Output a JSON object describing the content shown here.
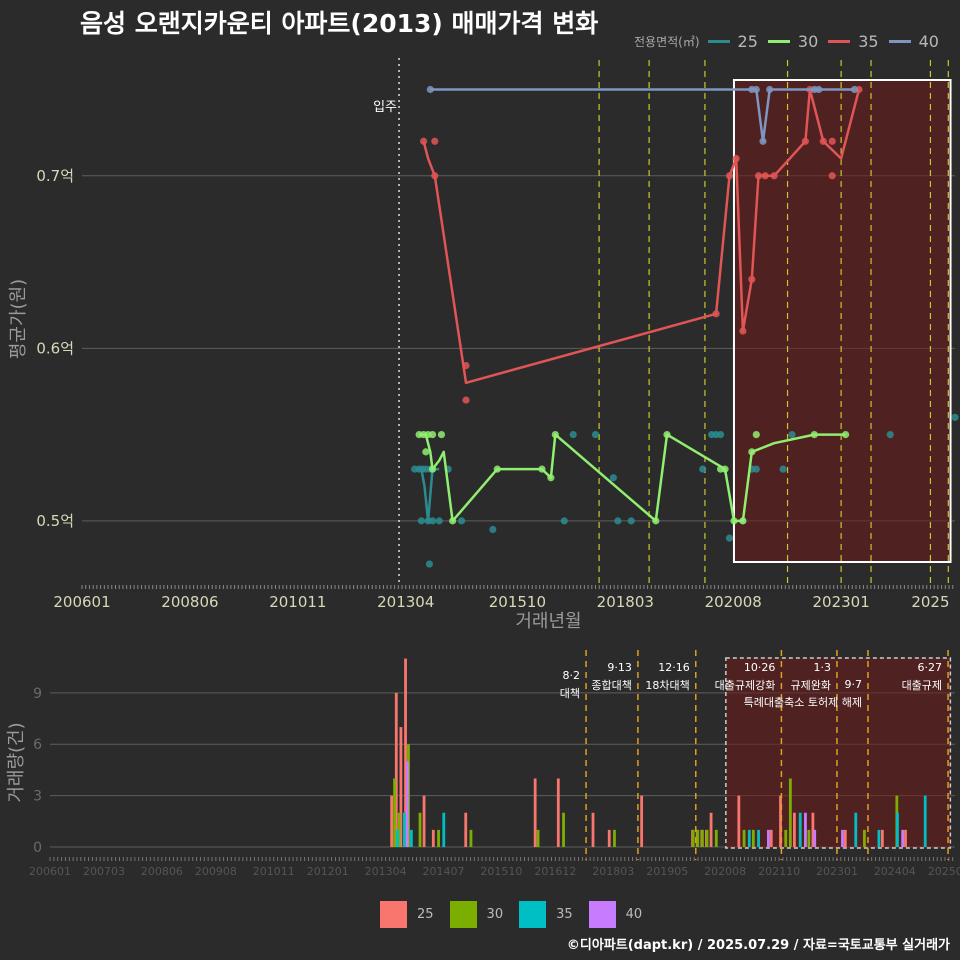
{
  "title": "음성 오랜지카운티 아파트(2013) 매매가격 변화",
  "legend": {
    "title": "전용면적(㎡)",
    "items": [
      {
        "label": "25",
        "line_color": "#2a8c8f",
        "bar_color": "#f8766d"
      },
      {
        "label": "30",
        "line_color": "#90ee70",
        "bar_color": "#7cae00"
      },
      {
        "label": "35",
        "line_color": "#e05555",
        "bar_color": "#00bfc4"
      },
      {
        "label": "40",
        "line_color": "#7f96c0",
        "bar_color": "#c77cff"
      }
    ]
  },
  "footer": "©디아파트(dapt.kr) / 2025.07.29 / 자료=국토교통부 실거래가",
  "chart_data": [
    {
      "type": "line",
      "title": "음성 오랜지카운티 아파트(2013) 매매가격 변화",
      "xlabel": "거래년월",
      "ylabel": "평균가(원)",
      "x_ticks": [
        "200601",
        "200806",
        "201011",
        "201304",
        "201510",
        "201803",
        "202008",
        "202301",
        "2025"
      ],
      "y_ticks": [
        {
          "v": 0.5,
          "label": "0.5억"
        },
        {
          "v": 0.6,
          "label": "0.6억"
        },
        {
          "v": 0.7,
          "label": "0.7억"
        }
      ],
      "xlim": [
        2006.0,
        2025.55
      ],
      "ylim": [
        0.464,
        0.77
      ],
      "grid": true,
      "occupancy": {
        "label": "입주",
        "x": 2013.1
      },
      "policy_lines": [
        2017.58,
        2018.7,
        2019.95,
        2021.8,
        2023.0,
        2023.67,
        2025.0,
        2025.4
      ],
      "highlight_range": [
        2020.6,
        2025.45
      ],
      "series": [
        {
          "name": "25",
          "color": "#2a8c8f",
          "line": [
            [
              2013.5,
              0.53
            ],
            [
              2013.6,
              0.53
            ],
            [
              2013.67,
              0.52
            ],
            [
              2013.75,
              0.5
            ],
            [
              2013.85,
              0.53
            ],
            [
              2014.0,
              0.53
            ]
          ],
          "points": [
            [
              2013.45,
              0.53
            ],
            [
              2013.55,
              0.53
            ],
            [
              2013.62,
              0.53
            ],
            [
              2013.7,
              0.53
            ],
            [
              2013.8,
              0.53
            ],
            [
              2013.85,
              0.53
            ],
            [
              2013.6,
              0.5
            ],
            [
              2013.75,
              0.5
            ],
            [
              2013.85,
              0.5
            ],
            [
              2013.78,
              0.475
            ],
            [
              2014.2,
              0.53
            ],
            [
              2014.0,
              0.5
            ],
            [
              2014.5,
              0.5
            ],
            [
              2015.2,
              0.495
            ],
            [
              2016.8,
              0.5
            ],
            [
              2017.0,
              0.55
            ],
            [
              2017.5,
              0.55
            ],
            [
              2017.9,
              0.525
            ],
            [
              2018.0,
              0.5
            ],
            [
              2018.3,
              0.5
            ],
            [
              2019.9,
              0.53
            ],
            [
              2020.1,
              0.55
            ],
            [
              2020.2,
              0.55
            ],
            [
              2020.3,
              0.55
            ],
            [
              2020.5,
              0.49
            ],
            [
              2020.8,
              0.5
            ],
            [
              2021.0,
              0.53
            ],
            [
              2021.1,
              0.53
            ],
            [
              2021.7,
              0.53
            ],
            [
              2021.9,
              0.55
            ],
            [
              2024.1,
              0.55
            ],
            [
              2025.55,
              0.56
            ]
          ]
        },
        {
          "name": "30",
          "color": "#90ee70",
          "line": [
            [
              2013.55,
              0.55
            ],
            [
              2013.7,
              0.55
            ],
            [
              2013.8,
              0.54
            ],
            [
              2013.85,
              0.53
            ],
            [
              2014.0,
              0.535
            ],
            [
              2014.1,
              0.54
            ],
            [
              2014.3,
              0.5
            ],
            [
              2015.3,
              0.53
            ],
            [
              2016.3,
              0.53
            ],
            [
              2016.5,
              0.525
            ],
            [
              2016.6,
              0.55
            ],
            [
              2018.85,
              0.5
            ],
            [
              2019.1,
              0.55
            ],
            [
              2020.4,
              0.53
            ],
            [
              2020.6,
              0.5
            ],
            [
              2020.8,
              0.5
            ],
            [
              2021.0,
              0.54
            ],
            [
              2021.5,
              0.545
            ],
            [
              2022.4,
              0.55
            ],
            [
              2023.1,
              0.55
            ]
          ],
          "points": [
            [
              2013.55,
              0.55
            ],
            [
              2013.65,
              0.55
            ],
            [
              2013.75,
              0.55
            ],
            [
              2013.85,
              0.55
            ],
            [
              2014.05,
              0.55
            ],
            [
              2013.7,
              0.54
            ],
            [
              2013.85,
              0.53
            ],
            [
              2014.3,
              0.5
            ],
            [
              2015.3,
              0.53
            ],
            [
              2016.3,
              0.53
            ],
            [
              2016.5,
              0.525
            ],
            [
              2016.6,
              0.55
            ],
            [
              2018.85,
              0.5
            ],
            [
              2019.1,
              0.55
            ],
            [
              2020.3,
              0.53
            ],
            [
              2020.4,
              0.53
            ],
            [
              2020.6,
              0.5
            ],
            [
              2020.8,
              0.5
            ],
            [
              2021.0,
              0.54
            ],
            [
              2021.1,
              0.55
            ],
            [
              2022.4,
              0.55
            ],
            [
              2023.1,
              0.55
            ]
          ]
        },
        {
          "name": "35",
          "color": "#e05555",
          "line": [
            [
              2013.65,
              0.72
            ],
            [
              2013.75,
              0.71
            ],
            [
              2013.9,
              0.7
            ],
            [
              2014.6,
              0.58
            ],
            [
              2020.2,
              0.62
            ],
            [
              2020.5,
              0.7
            ],
            [
              2020.65,
              0.71
            ],
            [
              2020.8,
              0.61
            ],
            [
              2021.0,
              0.64
            ],
            [
              2021.15,
              0.7
            ],
            [
              2021.3,
              0.7
            ],
            [
              2021.5,
              0.7
            ],
            [
              2022.2,
              0.72
            ],
            [
              2022.3,
              0.75
            ],
            [
              2022.6,
              0.72
            ],
            [
              2023.0,
              0.71
            ],
            [
              2023.4,
              0.75
            ]
          ],
          "points": [
            [
              2013.65,
              0.72
            ],
            [
              2013.9,
              0.72
            ],
            [
              2013.9,
              0.7
            ],
            [
              2014.6,
              0.59
            ],
            [
              2014.6,
              0.57
            ],
            [
              2020.2,
              0.62
            ],
            [
              2020.5,
              0.7
            ],
            [
              2020.65,
              0.71
            ],
            [
              2020.8,
              0.61
            ],
            [
              2021.0,
              0.64
            ],
            [
              2021.15,
              0.7
            ],
            [
              2021.3,
              0.7
            ],
            [
              2021.5,
              0.7
            ],
            [
              2022.2,
              0.72
            ],
            [
              2022.3,
              0.75
            ],
            [
              2022.6,
              0.72
            ],
            [
              2022.8,
              0.72
            ],
            [
              2022.8,
              0.7
            ],
            [
              2023.4,
              0.75
            ]
          ]
        },
        {
          "name": "40",
          "color": "#7f96c0",
          "line": [
            [
              2013.8,
              0.75
            ],
            [
              2021.1,
              0.75
            ],
            [
              2021.25,
              0.72
            ],
            [
              2021.4,
              0.75
            ],
            [
              2023.3,
              0.75
            ]
          ],
          "points": [
            [
              2013.8,
              0.75
            ],
            [
              2021.0,
              0.75
            ],
            [
              2021.1,
              0.75
            ],
            [
              2021.25,
              0.72
            ],
            [
              2021.4,
              0.75
            ],
            [
              2022.4,
              0.75
            ],
            [
              2022.5,
              0.75
            ],
            [
              2023.3,
              0.75
            ]
          ]
        }
      ]
    },
    {
      "type": "bar",
      "ylabel": "거래량(건)",
      "x_ticks": [
        "200601",
        "200703",
        "200806",
        "200908",
        "201011",
        "201201",
        "201304",
        "201407",
        "201510",
        "201612",
        "201803",
        "201905",
        "202008",
        "202110",
        "202301",
        "202404",
        "202506"
      ],
      "y_ticks": [
        0,
        3,
        6,
        9
      ],
      "xlim": [
        2006.0,
        2025.55
      ],
      "ylim": [
        0,
        11.5
      ],
      "highlight_range": [
        2020.6,
        2025.45
      ],
      "events": [
        {
          "x": 2017.58,
          "label": "8·2 대책"
        },
        {
          "x": 2018.7,
          "label": "9·13 종합대책"
        },
        {
          "x": 2019.95,
          "label": "12·16 18차대책"
        },
        {
          "x": 2021.8,
          "label": "10·26 대출규제강화"
        },
        {
          "x": 2023.0,
          "label": "1·3 규제완화"
        },
        {
          "x": 2023.67,
          "label": "9·7 특례대출축소 토허제 해제"
        },
        {
          "x": 2025.4,
          "label": "6·27 대출규제"
        }
      ],
      "series": [
        {
          "name": "25",
          "color": "#f8766d",
          "values": [
            [
              2013.4,
              3
            ],
            [
              2013.5,
              9
            ],
            [
              2013.6,
              7
            ],
            [
              2013.7,
              11
            ],
            [
              2014.1,
              3
            ],
            [
              2014.3,
              1
            ],
            [
              2015.0,
              2
            ],
            [
              2016.5,
              4
            ],
            [
              2017.0,
              4
            ],
            [
              2017.75,
              2
            ],
            [
              2018.1,
              1
            ],
            [
              2018.8,
              3
            ],
            [
              2019.9,
              1
            ],
            [
              2020.0,
              1
            ],
            [
              2020.1,
              1
            ],
            [
              2020.2,
              1
            ],
            [
              2020.3,
              2
            ],
            [
              2020.9,
              3
            ],
            [
              2021.6,
              1
            ],
            [
              2021.8,
              3
            ],
            [
              2022.1,
              2
            ],
            [
              2022.5,
              2
            ],
            [
              2023.2,
              1
            ],
            [
              2024.0,
              1
            ],
            [
              2024.5,
              1
            ]
          ]
        },
        {
          "name": "30",
          "color": "#7cae00",
          "values": [
            [
              2013.45,
              4
            ],
            [
              2013.55,
              2
            ],
            [
              2013.75,
              6
            ],
            [
              2014.0,
              2
            ],
            [
              2014.4,
              1
            ],
            [
              2015.1,
              1
            ],
            [
              2016.55,
              1
            ],
            [
              2017.1,
              2
            ],
            [
              2018.2,
              1
            ],
            [
              2019.9,
              1
            ],
            [
              2020.0,
              1
            ],
            [
              2020.1,
              1
            ],
            [
              2020.2,
              1
            ],
            [
              2020.4,
              1
            ],
            [
              2021.0,
              1
            ],
            [
              2021.2,
              1
            ],
            [
              2021.9,
              1
            ],
            [
              2022.0,
              4
            ],
            [
              2022.4,
              1
            ],
            [
              2023.6,
              1
            ],
            [
              2024.3,
              3
            ]
          ]
        },
        {
          "name": "35",
          "color": "#00bfc4",
          "values": [
            [
              2013.5,
              1
            ],
            [
              2013.65,
              2
            ],
            [
              2013.8,
              1
            ],
            [
              2014.5,
              2
            ],
            [
              2021.1,
              1
            ],
            [
              2021.3,
              1
            ],
            [
              2022.2,
              2
            ],
            [
              2023.4,
              2
            ],
            [
              2023.9,
              1
            ],
            [
              2024.3,
              2
            ],
            [
              2024.9,
              3
            ]
          ]
        },
        {
          "name": "40",
          "color": "#c77cff",
          "values": [
            [
              2013.7,
              5
            ],
            [
              2021.5,
              1
            ],
            [
              2022.3,
              2
            ],
            [
              2022.5,
              1
            ],
            [
              2023.1,
              1
            ],
            [
              2024.4,
              1
            ]
          ]
        }
      ]
    }
  ]
}
